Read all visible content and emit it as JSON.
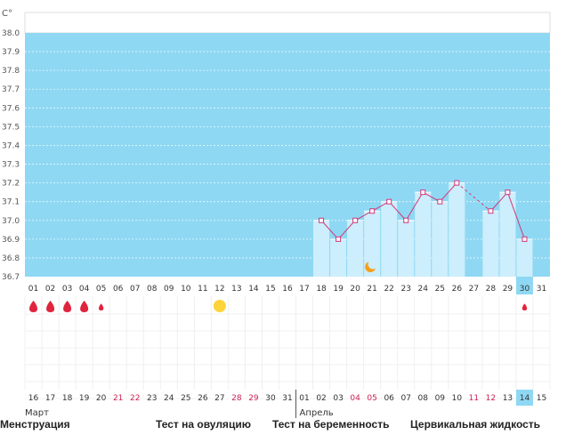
{
  "chart_data": {
    "type": "bar",
    "unit_label": "C°",
    "ylim": [
      36.7,
      38.0
    ],
    "y_ticks": [
      "38.0",
      "37.9",
      "37.8",
      "37.7",
      "37.6",
      "37.5",
      "37.4",
      "37.3",
      "37.2",
      "37.1",
      "37.0",
      "36.9",
      "36.8",
      "36.7"
    ],
    "top_days": [
      "01",
      "02",
      "03",
      "04",
      "05",
      "06",
      "07",
      "08",
      "09",
      "10",
      "11",
      "12",
      "13",
      "14",
      "15",
      "16",
      "17",
      "18",
      "19",
      "20",
      "21",
      "22",
      "23",
      "24",
      "25",
      "26",
      "27",
      "28",
      "29",
      "30",
      "31"
    ],
    "highlight_top_day": "30",
    "temperatures": [
      null,
      null,
      null,
      null,
      null,
      null,
      null,
      null,
      null,
      null,
      null,
      null,
      null,
      null,
      null,
      null,
      null,
      37.0,
      36.9,
      37.0,
      37.05,
      37.1,
      37.0,
      37.15,
      37.1,
      37.2,
      null,
      37.05,
      37.15,
      36.9,
      null
    ],
    "menstruation": [
      {
        "day": "01",
        "size": "large"
      },
      {
        "day": "02",
        "size": "large"
      },
      {
        "day": "03",
        "size": "large"
      },
      {
        "day": "04",
        "size": "large"
      },
      {
        "day": "05",
        "size": "small"
      },
      {
        "day": "30",
        "size": "small"
      }
    ],
    "ovulation_marker_day": "12",
    "moon_marker_day": "21",
    "bottom_days": [
      {
        "d": "16",
        "red": false
      },
      {
        "d": "17",
        "red": false
      },
      {
        "d": "18",
        "red": false
      },
      {
        "d": "19",
        "red": false
      },
      {
        "d": "20",
        "red": false
      },
      {
        "d": "21",
        "red": true
      },
      {
        "d": "22",
        "red": true
      },
      {
        "d": "23",
        "red": false
      },
      {
        "d": "24",
        "red": false
      },
      {
        "d": "25",
        "red": false
      },
      {
        "d": "26",
        "red": false
      },
      {
        "d": "27",
        "red": false
      },
      {
        "d": "28",
        "red": true
      },
      {
        "d": "29",
        "red": true
      },
      {
        "d": "30",
        "red": false
      },
      {
        "d": "31",
        "red": false
      },
      {
        "d": "01",
        "red": false
      },
      {
        "d": "02",
        "red": false
      },
      {
        "d": "03",
        "red": false
      },
      {
        "d": "04",
        "red": true
      },
      {
        "d": "05",
        "red": true
      },
      {
        "d": "06",
        "red": false
      },
      {
        "d": "07",
        "red": false
      },
      {
        "d": "08",
        "red": false
      },
      {
        "d": "09",
        "red": false
      },
      {
        "d": "10",
        "red": false
      },
      {
        "d": "11",
        "red": true
      },
      {
        "d": "12",
        "red": true
      },
      {
        "d": "13",
        "red": false
      },
      {
        "d": "14",
        "red": false
      },
      {
        "d": "15",
        "red": false
      }
    ],
    "highlight_bottom_day": "14",
    "month_labels": {
      "first": "Март",
      "second": "Апрель"
    },
    "colors": {
      "plot_bg": "#8fd8f3",
      "bar": "#cdeefc",
      "line": "#d0387a",
      "drop": "#e0243e",
      "sun": "#ffd43a",
      "moon": "#f5a01a",
      "red_day": "#cc2255",
      "highlight_cell": "#8fd8f3"
    }
  },
  "legend": {
    "menstruation": "Менструация",
    "ovulation_test": "Тест на овуляцию",
    "pregnancy_test": "Тест на беременность",
    "cervical_fluid": "Цервикальная жидкость"
  }
}
